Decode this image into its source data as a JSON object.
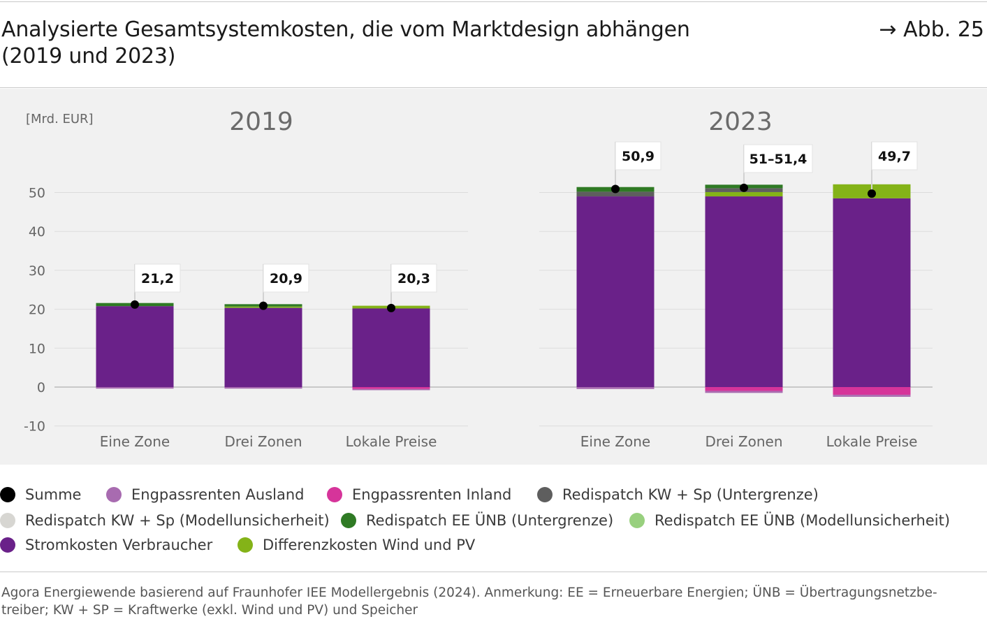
{
  "header": {
    "title_line1": "Analysierte Gesamtsystemkosten, die vom Marktdesign abhängen",
    "title_line2": "(2019 und 2023)",
    "figure_ref": "→ Abb. 25"
  },
  "chart_data": {
    "type": "bar",
    "stacked": true,
    "unit_label": "[Mrd. EUR]",
    "ylim": [
      -10,
      55
    ],
    "yticks": [
      "50",
      "40",
      "30",
      "20",
      "10",
      "0",
      "-10"
    ],
    "grid": true,
    "legend_position": "bottom",
    "panels": [
      {
        "title": "2019",
        "categories": [
          "Eine Zone",
          "Drei Zonen",
          "Lokale Preise"
        ],
        "totals": [
          21.2,
          20.9,
          20.3
        ],
        "total_labels": [
          "21,2",
          "20,9",
          "20,3"
        ],
        "positive_series": [
          {
            "name": "Stromkosten Verbraucher",
            "color": "#6a2189",
            "values": [
              20.8,
              20.3,
              20.2
            ]
          },
          {
            "name": "Redispatch KW + Sp (Untergrenze)",
            "color": "#5e5e5e",
            "values": [
              0.0,
              0.1,
              0.0
            ]
          },
          {
            "name": "Differenzkosten Wind und PV",
            "color": "#84b318",
            "values": [
              0.0,
              0.3,
              0.7
            ]
          },
          {
            "name": "Redispatch EE ÜNB (Untergrenze)",
            "color": "#2f7a24",
            "values": [
              0.8,
              0.6,
              0.0
            ]
          }
        ],
        "negative_series": [
          {
            "name": "Engpassrenten Inland",
            "color": "#d6349a",
            "values": [
              0.0,
              0.0,
              -0.5
            ]
          },
          {
            "name": "Engpassrenten Ausland",
            "color": "#a86bb0",
            "values": [
              -0.4,
              -0.4,
              -0.3
            ]
          }
        ]
      },
      {
        "title": "2023",
        "categories": [
          "Eine Zone",
          "Drei Zonen",
          "Lokale Preise"
        ],
        "totals": [
          50.9,
          51.2,
          49.7
        ],
        "total_labels": [
          "50,9",
          "51–51,4",
          "49,7"
        ],
        "positive_series": [
          {
            "name": "Stromkosten Verbraucher",
            "color": "#6a2189",
            "values": [
              49.0,
              49.0,
              48.5
            ]
          },
          {
            "name": "Redispatch KW + Sp (Untergrenze)",
            "color": "#5e5e5e",
            "values": [
              1.2,
              0.0,
              0.0
            ]
          },
          {
            "name": "Differenzkosten Wind und PV",
            "color": "#84b318",
            "values": [
              0.0,
              1.1,
              3.6
            ]
          },
          {
            "name": "Redispatch KW + Sp (Untergrenze)",
            "color": "#5e5e5e",
            "values": [
              0.0,
              1.0,
              0.0
            ]
          },
          {
            "name": "Redispatch EE ÜNB (Untergrenze)",
            "color": "#2f7a24",
            "values": [
              1.2,
              0.9,
              0.0
            ]
          }
        ],
        "negative_series": [
          {
            "name": "Engpassrenten Inland",
            "color": "#d6349a",
            "values": [
              0.0,
              -1.0,
              -2.0
            ]
          },
          {
            "name": "Engpassrenten Ausland",
            "color": "#a86bb0",
            "values": [
              -0.5,
              -0.5,
              -0.5
            ]
          }
        ]
      }
    ]
  },
  "legend": {
    "items": [
      {
        "label": "Summe",
        "color": "#000000"
      },
      {
        "label": "Engpassrenten Ausland",
        "color": "#a86bb0"
      },
      {
        "label": "Engpassrenten Inland",
        "color": "#d6349a"
      },
      {
        "label": "Redispatch KW + Sp (Untergrenze)",
        "color": "#5e5e5e"
      },
      {
        "label": "Redispatch KW + Sp (Modellunsicherheit)",
        "color": "#d7d6d2"
      },
      {
        "label": "Redispatch EE ÜNB (Untergrenze)",
        "color": "#2f7a24"
      },
      {
        "label": "Redispatch EE ÜNB (Modellunsicherheit)",
        "color": "#98d07e"
      },
      {
        "label": "Stromkosten Verbraucher",
        "color": "#6a2189"
      },
      {
        "label": "Differenzkosten Wind und PV",
        "color": "#84b318"
      }
    ]
  },
  "source": {
    "line1": "Agora Energiewende basierend auf Fraunhofer IEE Modellergebnis (2024). Anmerkung: EE = Erneuerbare Energien; ÜNB = Übertragungsnetzbe-",
    "line2": "treiber; KW + SP = Kraftwerke (exkl. Wind und PV) und Speicher"
  }
}
